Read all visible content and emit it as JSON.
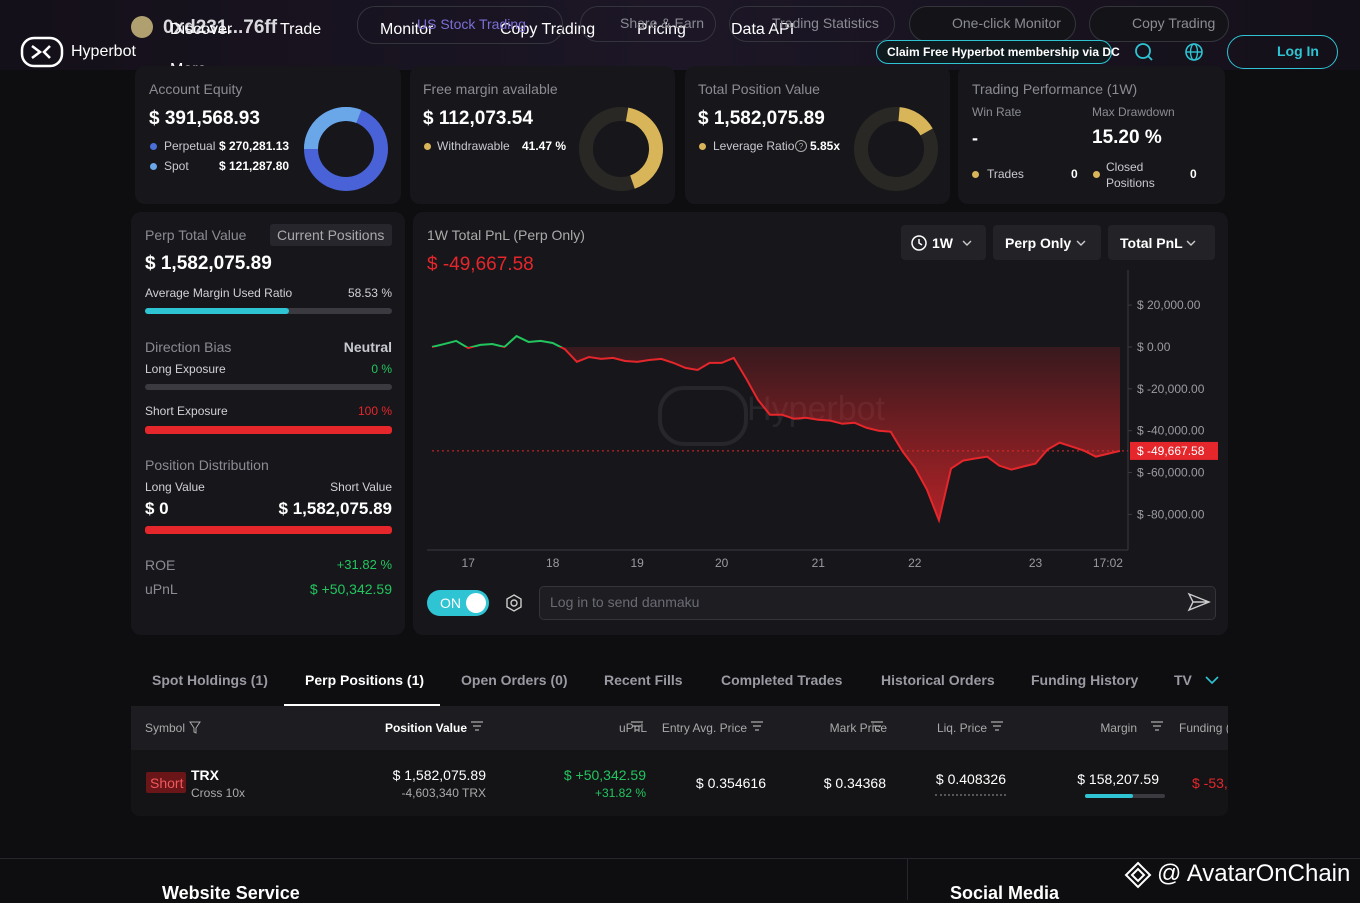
{
  "header": {
    "logo": "Hyperbot",
    "address": "0xd231...76ff",
    "nav": [
      "Discover",
      "Trade",
      "Monitor",
      "Copy Trading",
      "Pricing",
      "Data API",
      "More"
    ],
    "nav2": [
      "US Stock Trading",
      "Share & Earn",
      "Trading Statistics",
      "One-click Monitor",
      "Copy Trading"
    ],
    "promo": "Claim Free Hyperbot membership via DC",
    "login": "Log In"
  },
  "summary": [
    {
      "title": "Account Equity",
      "value": "$ 391,568.93",
      "items": [
        {
          "label": "Perpetual",
          "value": "$ 270,281.13"
        },
        {
          "label": "Spot",
          "value": "$ 121,287.80"
        }
      ]
    },
    {
      "title": "Free margin available",
      "value": "$ 112,073.54",
      "items": [
        {
          "label": "Withdrawable",
          "value": "41.47 %"
        }
      ]
    },
    {
      "title": "Total Position Value",
      "value": "$ 1,582,075.89",
      "items": [
        {
          "label": "Leverage Ratio",
          "value": "5.85x"
        }
      ]
    }
  ],
  "performance": {
    "title": "Trading Performance (1W)",
    "win_rate_label": "Win Rate",
    "win_rate": "-",
    "max_drawdown_label": "Max Drawdown",
    "max_drawdown": "15.20 %",
    "trades_label": "Trades",
    "trades": "0",
    "closed_label": "Closed Positions",
    "closed": "0"
  },
  "perp": {
    "title": "Perp Total Value",
    "tab": "Current Positions",
    "value": "$ 1,582,075.89",
    "margin_label": "Average Margin Used Ratio",
    "margin": "58.53 %",
    "bias_label": "Direction Bias",
    "bias": "Neutral",
    "long_label": "Long Exposure",
    "long": "0 %",
    "short_label": "Short Exposure",
    "short": "100 %",
    "dist_label": "Position Distribution",
    "long_value_label": "Long Value",
    "short_value_label": "Short Value",
    "long_value": "$ 0",
    "short_value": "$ 1,582,075.89",
    "roe_label": "ROE",
    "roe": "+31.82 %",
    "upnl_label": "uPnL",
    "upnl": "$ +50,342.59"
  },
  "pnl": {
    "title": "1W Total PnL (Perp Only)",
    "value": "$ -49,667.58",
    "filters": [
      "1W",
      "Perp Only",
      "Total PnL"
    ],
    "toggle": "ON",
    "danmaku": "Log in to send danmaku"
  },
  "chart_data": {
    "type": "line",
    "watermark": "Hyperbot",
    "categories": [
      null,
      null,
      null,
      "17",
      null,
      null,
      null,
      null,
      null,
      null,
      "18",
      null,
      null,
      null,
      null,
      null,
      null,
      "19",
      null,
      null,
      null,
      null,
      null,
      null,
      "20",
      null,
      null,
      null,
      null,
      null,
      null,
      null,
      "21",
      null,
      null,
      null,
      null,
      null,
      null,
      null,
      "22",
      null,
      null,
      null,
      null,
      null,
      null,
      null,
      null,
      null,
      "23",
      null,
      null,
      null,
      null,
      null,
      "17:02",
      null
    ],
    "values": [
      0,
      1400,
      2900,
      -500,
      1000,
      1400,
      0,
      5200,
      2400,
      2900,
      1900,
      -1000,
      -7100,
      -4800,
      -5700,
      -5200,
      -6700,
      -7100,
      -6200,
      -5700,
      -7600,
      -10000,
      -11000,
      -7600,
      -7600,
      -5200,
      -14800,
      -25200,
      -32400,
      -32400,
      -34300,
      -33800,
      -34800,
      -35200,
      -36700,
      -36200,
      -38600,
      -40000,
      -40500,
      -50000,
      -57600,
      -68100,
      -82800,
      -58100,
      -54300,
      -53300,
      -52400,
      -56700,
      -58600,
      -57100,
      -55700,
      -49000,
      -45700,
      -47600,
      -49500,
      -52400,
      -51000,
      -49667.58
    ],
    "value_labels": [
      null,
      null,
      null,
      null,
      null,
      null,
      null,
      null,
      null,
      null,
      null,
      null,
      null,
      null,
      null,
      null,
      null,
      null,
      null,
      null,
      null,
      null,
      null,
      null,
      null,
      null,
      null,
      null,
      null,
      null,
      null,
      null,
      null,
      null,
      null,
      null,
      null,
      null,
      null,
      null,
      null,
      null,
      null,
      null,
      null,
      null,
      null,
      null,
      null,
      null,
      null,
      null,
      null,
      null,
      null,
      null,
      null,
      "$ -49,667.58"
    ],
    "color": "#e5262b",
    "up_color": "#22c55e",
    "ylim": [
      -97000,
      32000
    ],
    "yticks": [
      {
        "value": 20000,
        "label": "$ 20,000.00"
      },
      {
        "value": 0,
        "label": "$ 0.00"
      },
      {
        "value": -20000,
        "label": "$ -20,000.00"
      },
      {
        "value": -40000,
        "label": "$ -40,000.00"
      },
      {
        "value": -60000,
        "label": "$ -60,000.00"
      },
      {
        "value": -80000,
        "label": "$ -80,000.00"
      }
    ]
  },
  "tabs": [
    "Spot Holdings (1)",
    "Perp Positions (1)",
    "Open Orders (0)",
    "Recent Fills",
    "Completed Trades",
    "Historical Orders",
    "Funding History",
    "TV"
  ],
  "table": {
    "headers": [
      "Symbol",
      "Position Value",
      "uPnL",
      "Entry Avg. Price",
      "Mark Price",
      "Liq. Price",
      "Margin",
      "Funding ("
    ],
    "rows": [
      {
        "side": "Short",
        "symbol": "TRX",
        "mode": "Cross 10x",
        "position_value": "$ 1,582,075.89",
        "size": "-4,603,340 TRX",
        "upnl": "$ +50,342.59",
        "upnl_pct": "+31.82 %",
        "entry": "$ 0.354616",
        "mark": "$ 0.34368",
        "liq": "$ 0.408326",
        "margin": "$ 158,207.59",
        "funding": "$ -53,"
      }
    ]
  },
  "footer": {
    "website": "Website Service",
    "social": "Social Media",
    "watermark": "@ AvatarOnChain"
  }
}
